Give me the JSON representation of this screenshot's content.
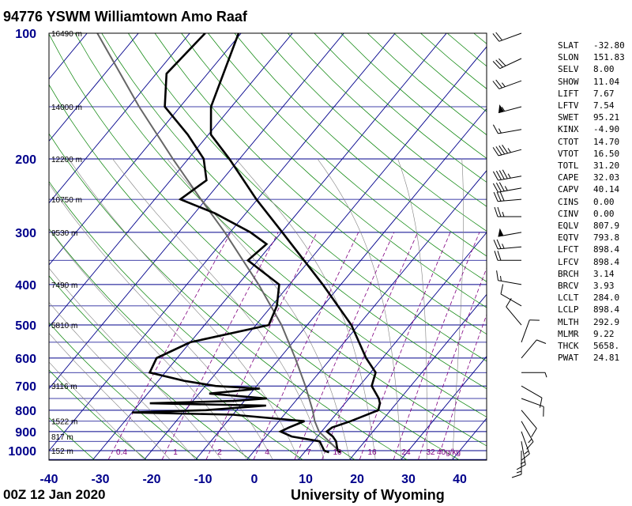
{
  "header": {
    "title": "94776 YSWM Williamtown Amo Raaf"
  },
  "footer": {
    "time": "00Z 12 Jan 2020",
    "source": "University of Wyoming"
  },
  "colors": {
    "isobar": "#00008b",
    "isotherm": "#00008b",
    "dry_adiabat": "#008000",
    "moist_adiabat": "#808080",
    "mixing_ratio": "#800080",
    "profile": "#000000",
    "axis_label": "#00008b"
  },
  "chart_data": {
    "type": "skew-t log-p sounding",
    "x_axis": {
      "label": "",
      "ticks": [
        -40,
        -30,
        -20,
        -10,
        0,
        10,
        20,
        30,
        40
      ],
      "unit": "temperature (C)"
    },
    "y_axis": {
      "label": "",
      "ticks": [
        100,
        200,
        300,
        400,
        500,
        600,
        700,
        800,
        900,
        1000
      ],
      "scale": "log",
      "unit": "pressure (hPa)"
    },
    "height_labels": [
      {
        "p": 100,
        "text": "16490 m"
      },
      {
        "p": 150,
        "text": "14000 m"
      },
      {
        "p": 200,
        "text": "12200 m"
      },
      {
        "p": 250,
        "text": "10750 m"
      },
      {
        "p": 300,
        "text": "9530 m"
      },
      {
        "p": 400,
        "text": "7490 m"
      },
      {
        "p": 500,
        "text": "5810 m"
      },
      {
        "p": 700,
        "text": "3116 m"
      },
      {
        "p": 850,
        "text": "1522 m"
      },
      {
        "p": 925,
        "text": "817 m"
      },
      {
        "p": 1000,
        "text": "152 m"
      }
    ],
    "mixing_ratio_labels": [
      "0.4",
      "1",
      "2",
      "4",
      "7",
      "10",
      "16",
      "24",
      "32",
      "40g/kg"
    ],
    "temperature": [
      [
        1009,
        17.0
      ],
      [
        1000,
        16.2
      ],
      [
        950,
        14.4
      ],
      [
        925,
        13.0
      ],
      [
        900,
        11.0
      ],
      [
        880,
        11.4
      ],
      [
        850,
        14.0
      ],
      [
        800,
        17.6
      ],
      [
        770,
        16.8
      ],
      [
        750,
        15.8
      ],
      [
        700,
        12.4
      ],
      [
        650,
        11.0
      ],
      [
        600,
        6.8
      ],
      [
        500,
        -1.4
      ],
      [
        400,
        -13.5
      ],
      [
        300,
        -29.8
      ],
      [
        250,
        -40.2
      ],
      [
        200,
        -52.0
      ],
      [
        175,
        -59.5
      ],
      [
        150,
        -64.0
      ],
      [
        100,
        -70.5
      ]
    ],
    "dewpoint": [
      [
        1009,
        14.8
      ],
      [
        1000,
        13.6
      ],
      [
        950,
        11.2
      ],
      [
        925,
        5.0
      ],
      [
        900,
        2.0
      ],
      [
        880,
        3.0
      ],
      [
        850,
        5.0
      ],
      [
        820,
        -10.0
      ],
      [
        810,
        -30.0
      ],
      [
        800,
        -16.0
      ],
      [
        780,
        -5.0
      ],
      [
        770,
        -28.0
      ],
      [
        760,
        -12.0
      ],
      [
        750,
        -6.0
      ],
      [
        730,
        -18.0
      ],
      [
        710,
        -9.0
      ],
      [
        700,
        -18.0
      ],
      [
        680,
        -25.0
      ],
      [
        650,
        -33.0
      ],
      [
        600,
        -34.0
      ],
      [
        550,
        -30.0
      ],
      [
        500,
        -17.5
      ],
      [
        450,
        -19.0
      ],
      [
        400,
        -22.0
      ],
      [
        350,
        -32.0
      ],
      [
        320,
        -31.0
      ],
      [
        300,
        -36.0
      ],
      [
        270,
        -46.0
      ],
      [
        250,
        -55.0
      ],
      [
        225,
        -53.0
      ],
      [
        200,
        -57.0
      ],
      [
        175,
        -64.0
      ],
      [
        150,
        -73.0
      ],
      [
        125,
        -78.0
      ],
      [
        100,
        -77.0
      ]
    ],
    "parcel_path": [
      [
        1009,
        17.0
      ],
      [
        900,
        9.5
      ],
      [
        850,
        7.0
      ],
      [
        800,
        4.8
      ],
      [
        700,
        -0.5
      ],
      [
        600,
        -7.0
      ],
      [
        500,
        -15.0
      ],
      [
        400,
        -26.0
      ],
      [
        300,
        -41.0
      ],
      [
        250,
        -51.0
      ],
      [
        200,
        -63.0
      ],
      [
        150,
        -78.0
      ],
      [
        100,
        -98.0
      ]
    ],
    "wind_barbs": [
      {
        "p": 100,
        "dir": 250,
        "kt": 20
      },
      {
        "p": 115,
        "dir": 245,
        "kt": 30
      },
      {
        "p": 130,
        "dir": 250,
        "kt": 25
      },
      {
        "p": 150,
        "dir": 255,
        "kt": 55
      },
      {
        "p": 170,
        "dir": 260,
        "kt": 15
      },
      {
        "p": 190,
        "dir": 255,
        "kt": 45
      },
      {
        "p": 220,
        "dir": 260,
        "kt": 45
      },
      {
        "p": 235,
        "dir": 260,
        "kt": 35
      },
      {
        "p": 250,
        "dir": 265,
        "kt": 30
      },
      {
        "p": 275,
        "dir": 270,
        "kt": 25
      },
      {
        "p": 300,
        "dir": 260,
        "kt": 50
      },
      {
        "p": 325,
        "dir": 265,
        "kt": 25
      },
      {
        "p": 350,
        "dir": 270,
        "kt": 20
      },
      {
        "p": 400,
        "dir": 280,
        "kt": 15
      },
      {
        "p": 450,
        "dir": 300,
        "kt": 10
      },
      {
        "p": 500,
        "dir": 320,
        "kt": 10
      },
      {
        "p": 550,
        "dir": 20,
        "kt": 10
      },
      {
        "p": 600,
        "dir": 40,
        "kt": 10
      },
      {
        "p": 650,
        "dir": 90,
        "kt": 5
      },
      {
        "p": 700,
        "dir": 120,
        "kt": 10
      },
      {
        "p": 750,
        "dir": 110,
        "kt": 10
      },
      {
        "p": 800,
        "dir": 140,
        "kt": 10
      },
      {
        "p": 850,
        "dir": 150,
        "kt": 15
      },
      {
        "p": 900,
        "dir": 160,
        "kt": 15
      },
      {
        "p": 950,
        "dir": 170,
        "kt": 15
      },
      {
        "p": 1000,
        "dir": 180,
        "kt": 15
      }
    ]
  },
  "indices": [
    {
      "key": "SLAT",
      "value": "-32.80"
    },
    {
      "key": "SLON",
      "value": "151.83"
    },
    {
      "key": "SELV",
      "value": "8.00"
    },
    {
      "key": "SHOW",
      "value": "11.04"
    },
    {
      "key": "LIFT",
      "value": "7.67"
    },
    {
      "key": "LFTV",
      "value": "7.54"
    },
    {
      "key": "SWET",
      "value": "95.21"
    },
    {
      "key": "KINX",
      "value": "-4.90"
    },
    {
      "key": "CTOT",
      "value": "14.70"
    },
    {
      "key": "VTOT",
      "value": "16.50"
    },
    {
      "key": "TOTL",
      "value": "31.20"
    },
    {
      "key": "CAPE",
      "value": "32.03"
    },
    {
      "key": "CAPV",
      "value": "40.14"
    },
    {
      "key": "CINS",
      "value": "0.00"
    },
    {
      "key": "CINV",
      "value": "0.00"
    },
    {
      "key": "EQLV",
      "value": "807.9"
    },
    {
      "key": "EQTV",
      "value": "793.8"
    },
    {
      "key": "LFCT",
      "value": "898.4"
    },
    {
      "key": "LFCV",
      "value": "898.4"
    },
    {
      "key": "BRCH",
      "value": "3.14"
    },
    {
      "key": "BRCV",
      "value": "3.93"
    },
    {
      "key": "LCLT",
      "value": "284.0"
    },
    {
      "key": "LCLP",
      "value": "898.4"
    },
    {
      "key": "MLTH",
      "value": "292.9"
    },
    {
      "key": "MLMR",
      "value": "9.22"
    },
    {
      "key": "THCK",
      "value": "5658."
    },
    {
      "key": "PWAT",
      "value": "24.81"
    }
  ]
}
